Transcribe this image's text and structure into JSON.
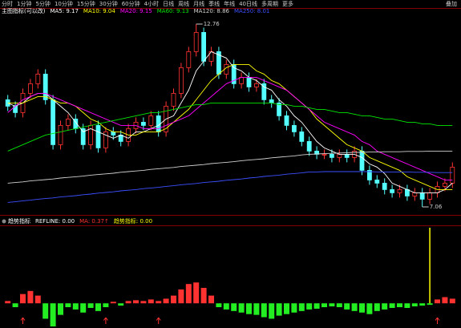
{
  "toolbar": {
    "tabs": [
      "分时",
      "1分钟",
      "5分钟",
      "10分钟",
      "15分钟",
      "30分钟",
      "60分钟",
      "4小时",
      "日线",
      "周线",
      "月线",
      "季线",
      "年线",
      "40日线",
      "多周期",
      "更多"
    ],
    "right": "叠加"
  },
  "chart_data": [
    {
      "type": "candlestick",
      "title": "主图指标(可以改)",
      "ylim": [
        6.885,
        13.06
      ],
      "up_color": "#ff3232",
      "down_color": "#54ffff",
      "open": [
        10.4,
        10.2,
        10.0,
        10.6,
        10.9,
        11.2,
        10.4,
        9.0,
        9.6,
        9.8,
        9.5,
        9.0,
        9.6,
        8.9,
        9.4,
        9.3,
        9.1,
        9.5,
        9.7,
        9.6,
        9.9,
        9.4,
        10.2,
        10.6,
        11.4,
        11.9,
        12.5,
        11.6,
        11.9,
        11.2,
        11.5,
        10.9,
        11.1,
        10.8,
        10.9,
        10.4,
        10.3,
        9.9,
        9.6,
        9.4,
        9.1,
        8.8,
        8.7,
        8.7,
        8.6,
        8.7,
        8.6,
        8.8,
        8.2,
        7.9,
        7.8,
        7.6,
        7.5,
        7.6,
        7.4,
        7.5,
        7.3,
        7.5,
        7.7,
        7.8
      ],
      "high": [
        10.55,
        10.35,
        10.75,
        11.05,
        11.35,
        11.35,
        10.55,
        9.75,
        9.95,
        9.95,
        9.65,
        9.75,
        9.75,
        9.55,
        9.55,
        9.45,
        9.65,
        9.85,
        9.85,
        10.05,
        10.05,
        10.35,
        10.75,
        11.55,
        12.05,
        12.76,
        12.65,
        12.05,
        12.05,
        11.65,
        11.65,
        11.25,
        11.25,
        11.05,
        11.05,
        10.55,
        10.45,
        10.05,
        9.75,
        9.55,
        9.25,
        8.95,
        8.85,
        8.85,
        8.85,
        8.85,
        8.95,
        8.95,
        8.35,
        8.05,
        7.95,
        7.75,
        7.75,
        7.75,
        7.65,
        7.65,
        7.65,
        7.85,
        7.95,
        8.45
      ],
      "low": [
        10.05,
        9.85,
        9.85,
        10.45,
        10.75,
        10.25,
        8.85,
        8.85,
        9.45,
        9.35,
        8.85,
        8.85,
        8.75,
        8.75,
        9.15,
        8.95,
        8.95,
        9.35,
        9.45,
        9.45,
        9.25,
        9.25,
        10.05,
        10.45,
        11.25,
        11.75,
        11.45,
        11.45,
        11.05,
        11.05,
        10.75,
        10.75,
        10.65,
        10.65,
        10.25,
        10.15,
        9.75,
        9.45,
        9.25,
        8.95,
        8.65,
        8.55,
        8.55,
        8.45,
        8.45,
        8.45,
        8.45,
        8.05,
        7.75,
        7.65,
        7.45,
        7.35,
        7.35,
        7.25,
        7.25,
        7.06,
        7.15,
        7.35,
        7.55,
        7.65
      ],
      "close": [
        10.2,
        10.0,
        10.6,
        10.9,
        11.2,
        10.4,
        9.0,
        9.6,
        9.8,
        9.5,
        9.0,
        9.6,
        8.9,
        9.4,
        9.3,
        9.1,
        9.5,
        9.7,
        9.6,
        9.9,
        9.4,
        10.2,
        10.6,
        11.4,
        11.9,
        12.5,
        11.6,
        11.9,
        11.2,
        11.5,
        10.9,
        11.1,
        10.8,
        10.9,
        10.4,
        10.3,
        9.9,
        9.6,
        9.4,
        9.1,
        8.8,
        8.7,
        8.7,
        8.6,
        8.7,
        8.6,
        8.8,
        8.2,
        7.9,
        7.8,
        7.6,
        7.5,
        7.6,
        7.4,
        7.5,
        7.3,
        7.5,
        7.7,
        7.8,
        8.3
      ],
      "series": [
        {
          "name": "MA5: 9.17",
          "color": "#ffffff",
          "values": [
            10.3,
            10.2,
            10.3,
            10.5,
            10.6,
            10.6,
            10.4,
            10.2,
            10.0,
            9.7,
            9.4,
            9.5,
            9.4,
            9.3,
            9.2,
            9.3,
            9.2,
            9.4,
            9.4,
            9.5,
            9.6,
            9.8,
            9.9,
            10.3,
            10.7,
            11.3,
            11.6,
            11.9,
            11.8,
            11.7,
            11.4,
            11.3,
            11.1,
            11.0,
            10.8,
            10.7,
            10.4,
            10.2,
            9.9,
            9.7,
            9.4,
            9.1,
            8.9,
            8.8,
            8.7,
            8.7,
            8.7,
            8.6,
            8.4,
            8.3,
            8.1,
            7.8,
            7.7,
            7.6,
            7.5,
            7.5,
            7.5,
            7.5,
            7.6,
            7.8
          ]
        },
        {
          "name": "MA10: 9.04",
          "color": "#ffff00",
          "values": [
            10.3,
            10.3,
            10.3,
            10.4,
            10.5,
            10.5,
            10.4,
            10.3,
            10.3,
            10.2,
            10.0,
            9.8,
            9.7,
            9.5,
            9.4,
            9.4,
            9.3,
            9.3,
            9.4,
            9.4,
            9.4,
            9.5,
            9.7,
            9.9,
            10.1,
            10.4,
            10.7,
            11.0,
            11.2,
            11.4,
            11.5,
            11.5,
            11.5,
            11.3,
            11.2,
            11.0,
            10.9,
            10.7,
            10.5,
            10.3,
            10.1,
            9.8,
            9.6,
            9.4,
            9.2,
            9.0,
            8.9,
            8.8,
            8.6,
            8.5,
            8.4,
            8.3,
            8.2,
            8.0,
            7.9,
            7.8,
            7.7,
            7.6,
            7.6,
            7.6
          ]
        },
        {
          "name": "MA20: 9.15",
          "color": "#ff00ff",
          "values": [
            10.0,
            10.2,
            10.4,
            10.5,
            10.6,
            10.6,
            10.5,
            10.4,
            10.3,
            10.2,
            10.1,
            10.0,
            9.9,
            9.8,
            9.7,
            9.6,
            9.6,
            9.6,
            9.5,
            9.5,
            9.5,
            9.6,
            9.7,
            9.8,
            9.9,
            10.1,
            10.3,
            10.5,
            10.7,
            10.9,
            11.0,
            11.1,
            11.1,
            11.1,
            11.0,
            10.9,
            10.8,
            10.7,
            10.5,
            10.3,
            10.1,
            9.9,
            9.7,
            9.6,
            9.5,
            9.4,
            9.3,
            9.1,
            9.0,
            8.8,
            8.7,
            8.6,
            8.5,
            8.4,
            8.3,
            8.2,
            8.1,
            8.0,
            7.9,
            7.9
          ]
        },
        {
          "name": "MA60: 9.13",
          "color": "#00e600",
          "values": [
            8.8,
            8.9,
            9.0,
            9.1,
            9.2,
            9.3,
            9.35,
            9.4,
            9.45,
            9.5,
            9.55,
            9.6,
            9.65,
            9.7,
            9.75,
            9.8,
            9.85,
            9.9,
            9.95,
            10.0,
            10.0,
            10.05,
            10.1,
            10.15,
            10.2,
            10.25,
            10.25,
            10.3,
            10.3,
            10.3,
            10.3,
            10.3,
            10.3,
            10.3,
            10.3,
            10.3,
            10.25,
            10.25,
            10.2,
            10.2,
            10.15,
            10.1,
            10.1,
            10.05,
            10.0,
            10.0,
            9.95,
            9.9,
            9.9,
            9.85,
            9.8,
            9.8,
            9.75,
            9.7,
            9.7,
            9.65,
            9.65,
            9.6,
            9.6,
            9.6
          ]
        },
        {
          "name": "MA120: 8.86",
          "color": "#d0d0d0",
          "values": [
            7.8,
            7.82,
            7.84,
            7.87,
            7.89,
            7.91,
            7.93,
            7.96,
            7.98,
            8.0,
            8.02,
            8.05,
            8.07,
            8.09,
            8.11,
            8.14,
            8.16,
            8.18,
            8.2,
            8.23,
            8.25,
            8.27,
            8.29,
            8.32,
            8.34,
            8.36,
            8.38,
            8.41,
            8.43,
            8.45,
            8.47,
            8.5,
            8.52,
            8.54,
            8.56,
            8.59,
            8.61,
            8.63,
            8.65,
            8.68,
            8.7,
            8.71,
            8.72,
            8.73,
            8.74,
            8.75,
            8.76,
            8.76,
            8.77,
            8.77,
            8.78,
            8.78,
            8.78,
            8.79,
            8.79,
            8.79,
            8.8,
            8.8,
            8.8,
            8.8
          ]
        },
        {
          "name": "MA250: 8.01",
          "color": "#3c50ff",
          "values": [
            7.2,
            7.22,
            7.25,
            7.27,
            7.3,
            7.32,
            7.34,
            7.37,
            7.39,
            7.41,
            7.44,
            7.46,
            7.49,
            7.51,
            7.53,
            7.56,
            7.58,
            7.6,
            7.63,
            7.65,
            7.67,
            7.7,
            7.72,
            7.75,
            7.77,
            7.79,
            7.82,
            7.84,
            7.86,
            7.89,
            7.91,
            7.93,
            7.96,
            7.98,
            8.01,
            8.03,
            8.05,
            8.08,
            8.1,
            8.12,
            8.15,
            8.15,
            8.16,
            8.16,
            8.16,
            8.16,
            8.16,
            8.16,
            8.16,
            8.15,
            8.15,
            8.15,
            8.15,
            8.15,
            8.14,
            8.14,
            8.14,
            8.13,
            8.13,
            8.13
          ]
        }
      ]
    },
    {
      "type": "histogram",
      "title": "趋势指标",
      "legend": [
        {
          "text": "REFLINE: 0.00",
          "color": "#ffffff"
        },
        {
          "text": "MA: 0.37↑",
          "color": "#ff3232"
        },
        {
          "text": "趋势指标: 0.00",
          "color": "#ffff00"
        }
      ],
      "ylim": [
        -0.32,
        1.0
      ],
      "up_color": "#ff3232",
      "down_color": "#22ee22",
      "spike_color": "#ffff00",
      "signal_color": "#ff3232",
      "values": [
        0.03,
        -0.05,
        0.12,
        0.16,
        0.1,
        -0.2,
        -0.3,
        -0.15,
        -0.05,
        -0.08,
        -0.12,
        -0.06,
        -0.1,
        -0.05,
        0.02,
        -0.03,
        0.03,
        0.04,
        0.03,
        0.05,
        0.03,
        0.06,
        0.1,
        0.18,
        0.25,
        0.27,
        0.2,
        0.1,
        -0.05,
        -0.08,
        -0.1,
        -0.12,
        -0.14,
        -0.15,
        -0.18,
        -0.2,
        -0.16,
        -0.14,
        -0.12,
        -0.1,
        -0.08,
        -0.07,
        -0.05,
        -0.04,
        -0.05,
        -0.08,
        -0.1,
        -0.12,
        -0.14,
        -0.1,
        -0.08,
        -0.06,
        -0.05,
        -0.06,
        -0.04,
        -0.03,
        -0.02,
        0.05,
        0.08,
        0.06
      ],
      "spike": {
        "index": 56,
        "value": 0.98
      },
      "signals": [
        2,
        13,
        20,
        57
      ]
    }
  ]
}
